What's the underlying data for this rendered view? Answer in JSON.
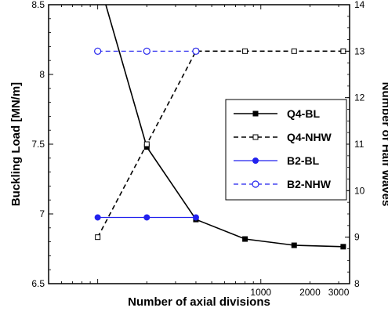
{
  "chart_data": {
    "type": "line",
    "xlabel": "Number of axial divisions",
    "ylabel_left": "Buckling Load  [MN/m]",
    "ylabel_right": "Number of Half Waves",
    "xscale": "log",
    "xlim": [
      50,
      3500
    ],
    "ylim_left": [
      6.5,
      8.5
    ],
    "ylim_right": [
      8,
      14
    ],
    "x_tick_labels": [
      {
        "value": 1000,
        "label": "1000"
      },
      {
        "value": 2000,
        "label": "2000"
      },
      {
        "value": 3000,
        "label": "3000"
      }
    ],
    "y_left_ticks": [
      6.5,
      7,
      7.5,
      8,
      8.5
    ],
    "y_left_tick_labels": [
      "6.5",
      "7",
      "7.5",
      "8",
      "8.5"
    ],
    "y_right_ticks": [
      8,
      9,
      10,
      11,
      12,
      13,
      14
    ],
    "y_right_tick_labels": [
      "8",
      "9",
      "10",
      "11",
      "12",
      "13",
      "14"
    ],
    "legend_position": "center-right",
    "grid": false,
    "series": [
      {
        "name": "Q4-BL",
        "axis": "left",
        "color": "#000000",
        "line": "solid",
        "marker": "filled-square",
        "x": [
          100,
          200,
          400,
          800,
          1600,
          3200
        ],
        "y": [
          8.7,
          7.48,
          6.96,
          6.82,
          6.775,
          6.765
        ]
      },
      {
        "name": "Q4-NHW",
        "axis": "right",
        "color": "#000000",
        "line": "dashed",
        "marker": "open-square",
        "x": [
          100,
          200,
          400,
          800,
          1600,
          3200
        ],
        "y": [
          9,
          11,
          13,
          13,
          13,
          13
        ]
      },
      {
        "name": "B2-BL",
        "axis": "left",
        "color": "#2222ee",
        "line": "solid",
        "marker": "filled-circle",
        "x": [
          100,
          200,
          400
        ],
        "y": [
          6.975,
          6.975,
          6.975
        ]
      },
      {
        "name": "B2-NHW",
        "axis": "right",
        "color": "#2222ee",
        "line": "dashed",
        "marker": "open-circle",
        "x": [
          100,
          200,
          400
        ],
        "y": [
          13,
          13,
          13
        ]
      }
    ]
  }
}
